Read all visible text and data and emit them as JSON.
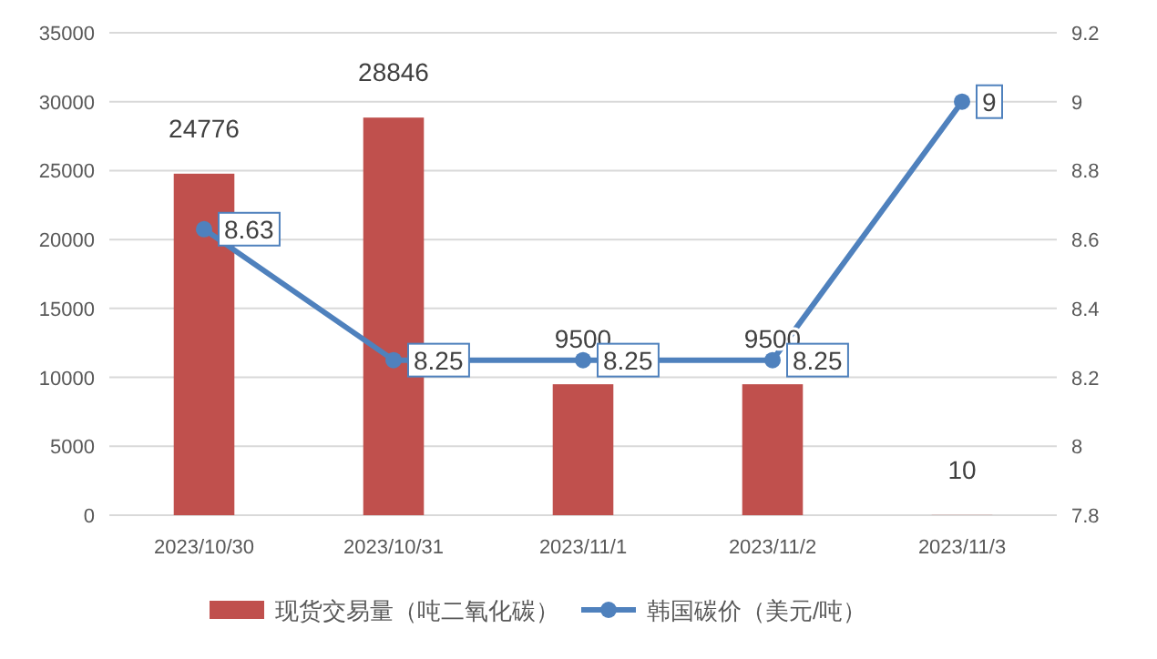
{
  "chart_data": {
    "type": "bar",
    "categories": [
      "2023/10/30",
      "2023/10/31",
      "2023/11/1",
      "2023/11/2",
      "2023/11/3"
    ],
    "series": [
      {
        "name": "现货交易量（吨二氧化碳）",
        "type": "bar",
        "color": "#c0504d",
        "values": [
          24776,
          28846,
          9500,
          9500,
          10
        ]
      },
      {
        "name": "韩国碳价（美元/吨）",
        "type": "line",
        "axis": "y2",
        "color": "#4f81bd",
        "values": [
          8.63,
          8.25,
          8.25,
          8.25,
          9
        ]
      }
    ],
    "ylim": [
      0,
      35000
    ],
    "yticks": [
      0,
      5000,
      10000,
      15000,
      20000,
      25000,
      30000,
      35000
    ],
    "y2lim": [
      7.8,
      9.2
    ],
    "y2ticks": [
      7.8,
      8,
      8.2,
      8.4,
      8.6,
      8.8,
      9,
      9.2
    ],
    "grid": "y",
    "legend": "bottom",
    "marker": "circle",
    "line_style": "solid",
    "data_labels": true
  }
}
